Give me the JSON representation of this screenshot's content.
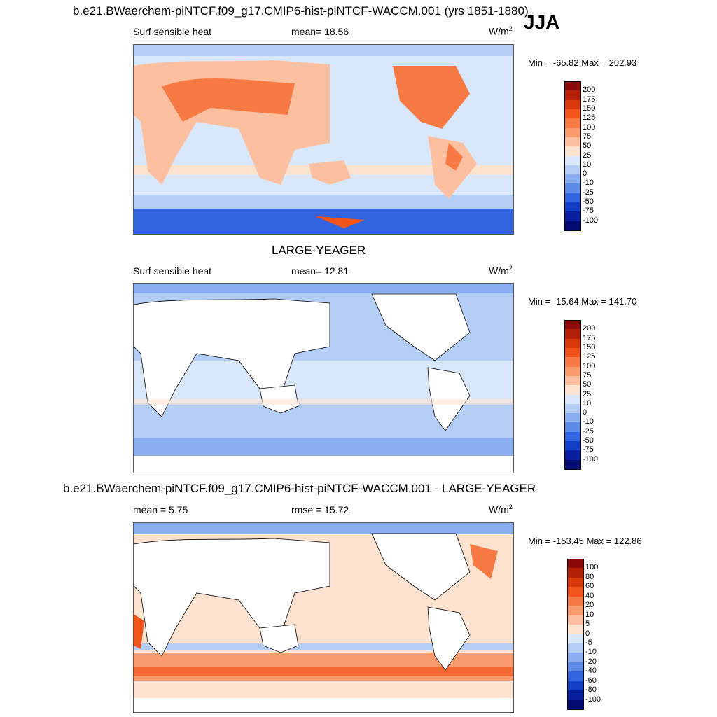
{
  "title_top": "b.e21.BWaerchem-piNTCF.f09_g17.CMIP6-hist-piNTCF-WACCM.001 (yrs 1851-1880)",
  "season": "JJA",
  "panels": [
    {
      "heading": "",
      "variable": "Surf sensible heat",
      "stat_left": "mean=  18.56",
      "stat_mid": "",
      "units": "W/m",
      "units_sup": "2",
      "minmax": "Min = -65.82 Max = 202.93",
      "colorbar_labels": [
        "200",
        "175",
        "150",
        "125",
        "100",
        "75",
        "50",
        "25",
        "10",
        "0",
        "-10",
        "-25",
        "-50",
        "-75",
        "-100"
      ]
    },
    {
      "heading": "LARGE-YEAGER",
      "variable": "Surf sensible heat",
      "stat_left": "mean=  12.81",
      "stat_mid": "",
      "units": "W/m",
      "units_sup": "2",
      "minmax": "Min = -15.64 Max = 141.70",
      "colorbar_labels": [
        "200",
        "175",
        "150",
        "125",
        "100",
        "75",
        "50",
        "25",
        "10",
        "0",
        "-10",
        "-25",
        "-50",
        "-75",
        "-100"
      ]
    },
    {
      "heading": "b.e21.BWaerchem-piNTCF.f09_g17.CMIP6-hist-piNTCF-WACCM.001 - LARGE-YEAGER",
      "variable": "mean =   5.75",
      "stat_left": "rmse =  15.72",
      "stat_mid": "",
      "units": "W/m",
      "units_sup": "2",
      "minmax": "Min = -153.45 Max = 122.86",
      "colorbar_labels": [
        "100",
        "80",
        "60",
        "40",
        "20",
        "10",
        "5",
        "0",
        "-5",
        "-10",
        "-20",
        "-40",
        "-60",
        "-80",
        "-100"
      ]
    }
  ],
  "colors": {
    "palette": [
      "#8c0a0a",
      "#b52008",
      "#d93a0c",
      "#f0541a",
      "#f77a45",
      "#fa9b6d",
      "#fcc0a0",
      "#fde2d0",
      "#d8e8fa",
      "#b3cdf5",
      "#8aaef0",
      "#5e8be8",
      "#3364e0",
      "#1440c8",
      "#0a1f9e",
      "#020c70"
    ]
  },
  "chart_data": [
    {
      "type": "heatmap",
      "title": "b.e21.BWaerchem-piNTCF.f09_g17.CMIP6-hist-piNTCF-WACCM.001 (yrs 1851-1880)",
      "variable": "Surf sensible heat",
      "units": "W/m2",
      "mean": 18.56,
      "min": -65.82,
      "max": 202.93,
      "levels": [
        -100,
        -75,
        -50,
        -25,
        -10,
        0,
        10,
        25,
        50,
        75,
        100,
        125,
        150,
        175,
        200
      ]
    },
    {
      "type": "heatmap",
      "title": "LARGE-YEAGER",
      "variable": "Surf sensible heat",
      "units": "W/m2",
      "mean": 12.81,
      "min": -15.64,
      "max": 141.7,
      "levels": [
        -100,
        -75,
        -50,
        -25,
        -10,
        0,
        10,
        25,
        50,
        75,
        100,
        125,
        150,
        175,
        200
      ]
    },
    {
      "type": "heatmap",
      "title": "b.e21.BWaerchem-piNTCF.f09_g17.CMIP6-hist-piNTCF-WACCM.001 - LARGE-YEAGER",
      "units": "W/m2",
      "mean": 5.75,
      "rmse": 15.72,
      "min": -153.45,
      "max": 122.86,
      "levels": [
        -100,
        -80,
        -60,
        -40,
        -20,
        -10,
        -5,
        0,
        5,
        10,
        20,
        40,
        60,
        80,
        100
      ]
    }
  ]
}
